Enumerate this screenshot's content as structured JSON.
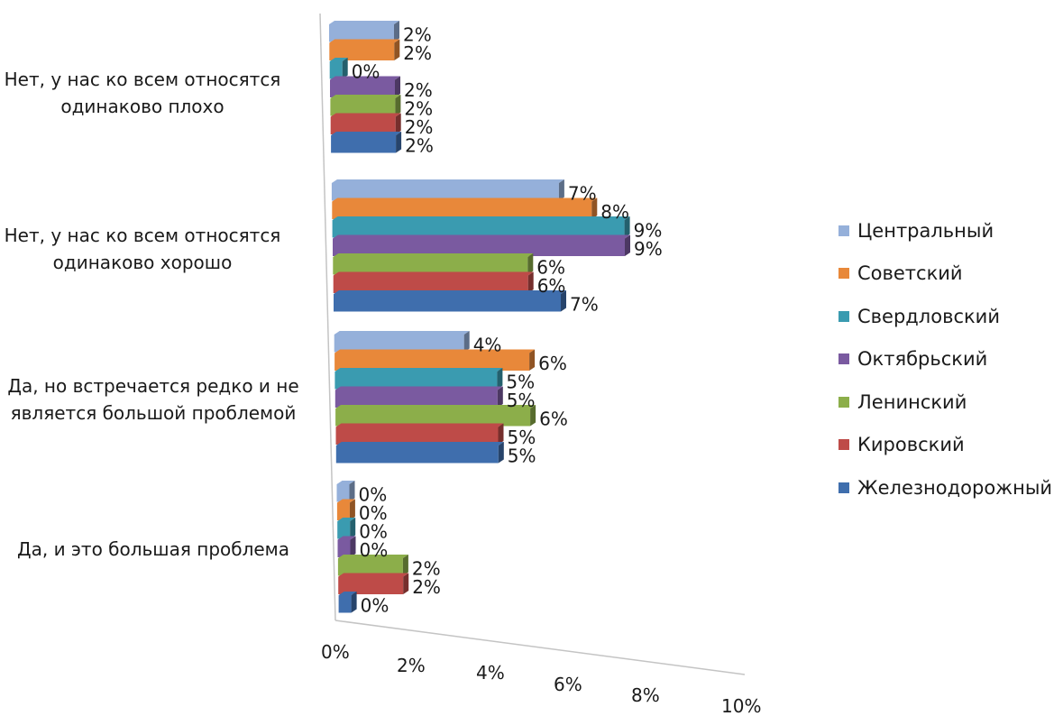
{
  "chart_data": {
    "type": "bar",
    "orientation": "horizontal",
    "style": "3d-clustered",
    "title": "",
    "xlabel": "",
    "ylabel": "",
    "xlim": [
      0,
      10
    ],
    "x_ticks": [
      "0%",
      "2%",
      "4%",
      "6%",
      "8%",
      "10%"
    ],
    "categories": [
      "Нет, у нас ко всем относятся\nодинаково плохо",
      "Нет, у нас ко всем относятся\nодинаково хорошо",
      "Да, но встречается редко и не\nявляется большой проблемой",
      "Да, и это большая проблема"
    ],
    "legend_position": "right",
    "series": [
      {
        "name": "Центральный",
        "color": "#95B0DA",
        "values": [
          2,
          7,
          4,
          0
        ],
        "labels": [
          "2%",
          "7%",
          "4%",
          "0%"
        ]
      },
      {
        "name": "Советский",
        "color": "#E8883A",
        "values": [
          2,
          8,
          6,
          0
        ],
        "labels": [
          "2%",
          "8%",
          "6%",
          "0%"
        ]
      },
      {
        "name": "Свердловский",
        "color": "#3A9BB0",
        "values": [
          0,
          9,
          5,
          0
        ],
        "labels": [
          "0%",
          "9%",
          "5%",
          "0%"
        ]
      },
      {
        "name": "Октябрьский",
        "color": "#7A5AA0",
        "values": [
          2,
          9,
          5,
          0
        ],
        "labels": [
          "2%",
          "9%",
          "5%",
          "0%"
        ]
      },
      {
        "name": "Ленинский",
        "color": "#8CAE4A",
        "values": [
          2,
          6,
          6,
          2
        ],
        "labels": [
          "2%",
          "6%",
          "6%",
          "2%"
        ]
      },
      {
        "name": "Кировский",
        "color": "#BE4B48",
        "values": [
          2,
          6,
          5,
          2
        ],
        "labels": [
          "2%",
          "6%",
          "5%",
          "2%"
        ]
      },
      {
        "name": "Железнодорожный",
        "color": "#3F6EAD",
        "values": [
          2,
          7,
          5,
          0
        ],
        "labels": [
          "2%",
          "7%",
          "5%",
          "0%"
        ]
      }
    ]
  }
}
